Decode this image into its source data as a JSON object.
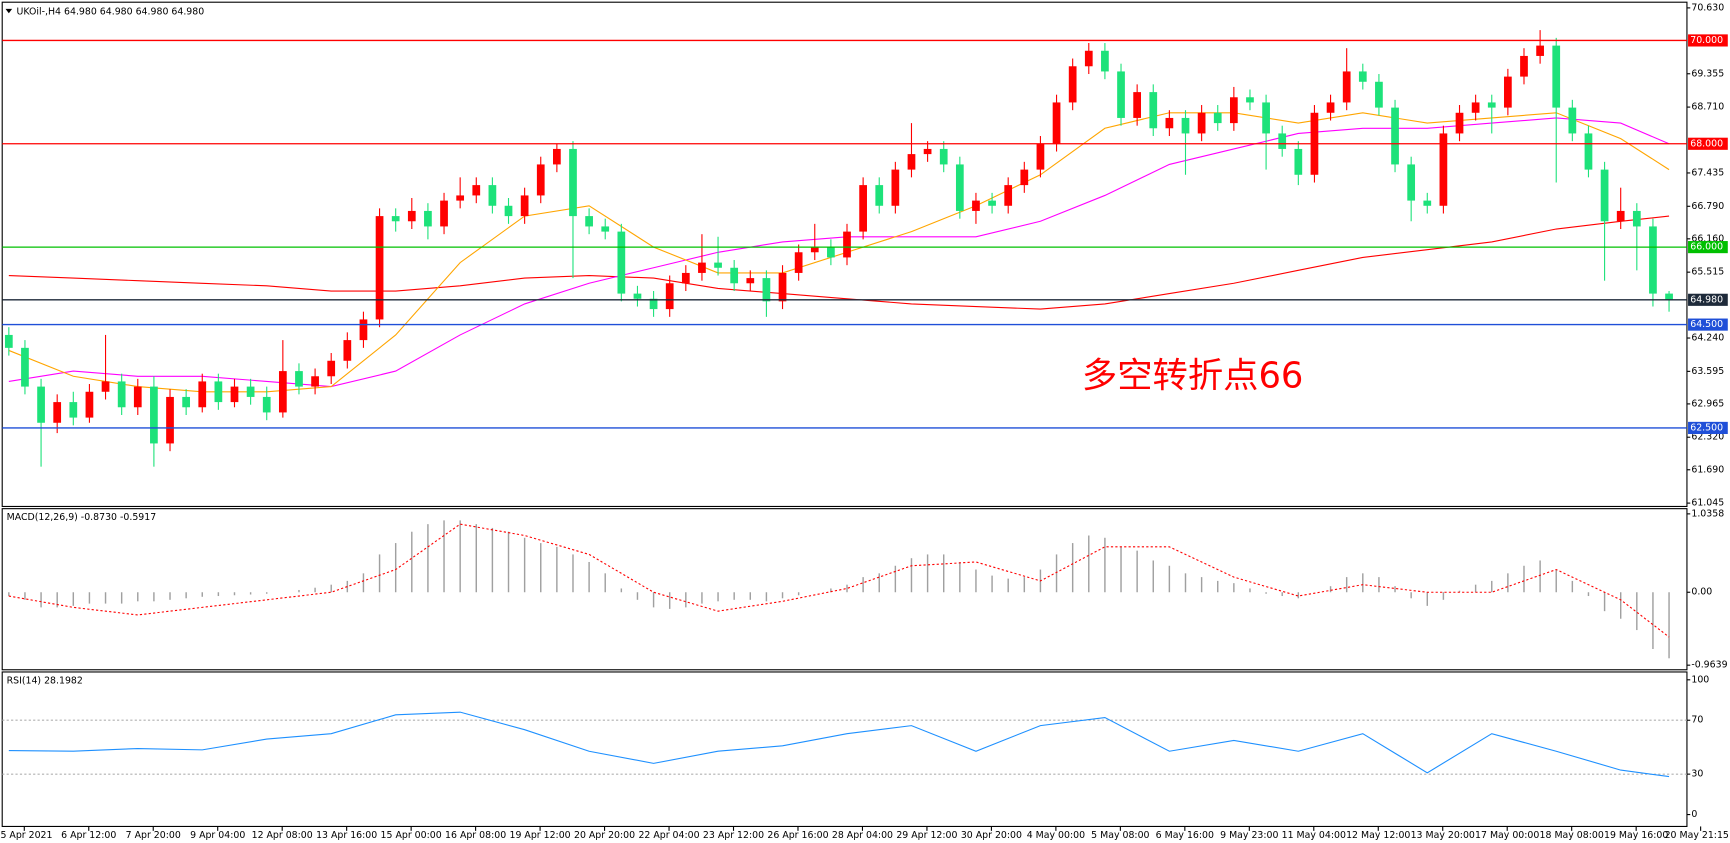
{
  "chart_data": {
    "type": "candlestick",
    "header": "UKOil-,H4  64.980 64.980 64.980 64.980",
    "up_color": "#ff0000",
    "down_color": "#1de27a",
    "candles": [
      [
        64.3,
        64.45,
        63.9,
        64.05
      ],
      [
        64.05,
        64.2,
        63.15,
        63.3
      ],
      [
        63.3,
        63.45,
        61.75,
        62.6
      ],
      [
        62.6,
        63.15,
        62.4,
        63.0
      ],
      [
        63.0,
        63.2,
        62.55,
        62.7
      ],
      [
        62.7,
        63.35,
        62.6,
        63.2
      ],
      [
        63.2,
        64.3,
        63.05,
        63.4
      ],
      [
        63.4,
        63.55,
        62.75,
        62.9
      ],
      [
        62.9,
        63.45,
        62.75,
        63.3
      ],
      [
        63.3,
        63.5,
        61.75,
        62.2
      ],
      [
        62.2,
        63.25,
        62.05,
        63.1
      ],
      [
        63.1,
        63.25,
        62.75,
        62.9
      ],
      [
        62.9,
        63.55,
        62.8,
        63.4
      ],
      [
        63.4,
        63.55,
        62.85,
        63.0
      ],
      [
        63.0,
        63.45,
        62.9,
        63.3
      ],
      [
        63.3,
        63.45,
        62.95,
        63.1
      ],
      [
        63.1,
        63.3,
        62.65,
        62.8
      ],
      [
        62.8,
        64.2,
        62.7,
        63.6
      ],
      [
        63.6,
        63.75,
        63.15,
        63.3
      ],
      [
        63.3,
        63.65,
        63.15,
        63.5
      ],
      [
        63.5,
        63.95,
        63.35,
        63.8
      ],
      [
        63.8,
        64.35,
        63.65,
        64.2
      ],
      [
        64.2,
        64.75,
        64.05,
        64.6
      ],
      [
        64.6,
        66.75,
        64.45,
        66.6
      ],
      [
        66.6,
        66.75,
        66.3,
        66.5
      ],
      [
        66.5,
        66.95,
        66.35,
        66.7
      ],
      [
        66.7,
        66.85,
        66.15,
        66.4
      ],
      [
        66.4,
        67.05,
        66.25,
        66.9
      ],
      [
        66.9,
        67.35,
        66.75,
        67.0
      ],
      [
        67.0,
        67.35,
        66.85,
        67.2
      ],
      [
        67.2,
        67.35,
        66.65,
        66.8
      ],
      [
        66.8,
        66.95,
        66.45,
        66.6
      ],
      [
        66.6,
        67.15,
        66.45,
        67.0
      ],
      [
        67.0,
        67.75,
        66.85,
        67.6
      ],
      [
        67.6,
        68.0,
        67.45,
        67.9
      ],
      [
        67.9,
        68.05,
        65.4,
        66.6
      ],
      [
        66.6,
        66.75,
        66.25,
        66.4
      ],
      [
        66.4,
        66.55,
        66.15,
        66.3
      ],
      [
        66.3,
        66.45,
        64.95,
        65.1
      ],
      [
        65.1,
        65.25,
        64.85,
        65.0
      ],
      [
        65.0,
        65.15,
        64.65,
        64.8
      ],
      [
        64.8,
        65.45,
        64.65,
        65.3
      ],
      [
        65.3,
        65.65,
        65.15,
        65.5
      ],
      [
        65.5,
        66.25,
        65.35,
        65.7
      ],
      [
        65.7,
        66.2,
        65.45,
        65.6
      ],
      [
        65.6,
        65.75,
        65.15,
        65.3
      ],
      [
        65.3,
        65.55,
        65.15,
        65.4
      ],
      [
        65.4,
        65.55,
        64.65,
        64.95
      ],
      [
        64.95,
        65.65,
        64.8,
        65.5
      ],
      [
        65.5,
        66.05,
        65.35,
        65.9
      ],
      [
        65.9,
        66.45,
        65.75,
        66.0
      ],
      [
        66.0,
        66.15,
        65.65,
        65.8
      ],
      [
        65.8,
        66.45,
        65.65,
        66.3
      ],
      [
        66.3,
        67.35,
        66.15,
        67.2
      ],
      [
        67.2,
        67.35,
        66.65,
        66.8
      ],
      [
        66.8,
        67.65,
        66.65,
        67.5
      ],
      [
        67.5,
        68.4,
        67.35,
        67.8
      ],
      [
        67.8,
        68.05,
        67.65,
        67.9
      ],
      [
        67.9,
        68.05,
        67.45,
        67.6
      ],
      [
        67.6,
        67.75,
        66.55,
        66.7
      ],
      [
        66.7,
        67.05,
        66.45,
        66.9
      ],
      [
        66.9,
        67.05,
        66.65,
        66.8
      ],
      [
        66.8,
        67.35,
        66.65,
        67.2
      ],
      [
        67.2,
        67.65,
        67.05,
        67.5
      ],
      [
        67.5,
        68.15,
        67.35,
        68.0
      ],
      [
        68.0,
        68.95,
        67.85,
        68.8
      ],
      [
        68.8,
        69.65,
        68.65,
        69.5
      ],
      [
        69.5,
        69.95,
        69.35,
        69.8
      ],
      [
        69.8,
        69.95,
        69.25,
        69.4
      ],
      [
        69.4,
        69.55,
        68.35,
        68.5
      ],
      [
        68.5,
        69.15,
        68.35,
        69.0
      ],
      [
        69.0,
        69.15,
        68.15,
        68.3
      ],
      [
        68.3,
        68.65,
        68.15,
        68.5
      ],
      [
        68.5,
        68.65,
        67.4,
        68.2
      ],
      [
        68.2,
        68.75,
        68.05,
        68.6
      ],
      [
        68.6,
        68.75,
        68.25,
        68.4
      ],
      [
        68.4,
        69.1,
        68.25,
        68.9
      ],
      [
        68.9,
        69.05,
        68.65,
        68.8
      ],
      [
        68.8,
        68.95,
        67.5,
        68.2
      ],
      [
        68.2,
        68.35,
        67.75,
        67.9
      ],
      [
        67.9,
        68.05,
        67.2,
        67.4
      ],
      [
        67.4,
        68.75,
        67.25,
        68.6
      ],
      [
        68.6,
        68.95,
        68.45,
        68.8
      ],
      [
        68.8,
        69.85,
        68.65,
        69.4
      ],
      [
        69.4,
        69.55,
        69.05,
        69.2
      ],
      [
        69.2,
        69.35,
        68.55,
        68.7
      ],
      [
        68.7,
        68.85,
        67.45,
        67.6
      ],
      [
        67.6,
        67.75,
        66.5,
        66.9
      ],
      [
        66.9,
        67.05,
        66.65,
        66.8
      ],
      [
        66.8,
        68.35,
        66.65,
        68.2
      ],
      [
        68.2,
        68.75,
        68.05,
        68.6
      ],
      [
        68.6,
        68.95,
        68.45,
        68.8
      ],
      [
        68.8,
        68.95,
        68.2,
        68.7
      ],
      [
        68.7,
        69.45,
        68.55,
        69.3
      ],
      [
        69.3,
        69.85,
        69.15,
        69.7
      ],
      [
        69.7,
        70.2,
        69.55,
        69.9
      ],
      [
        69.9,
        70.05,
        67.25,
        68.7
      ],
      [
        68.7,
        68.85,
        68.05,
        68.2
      ],
      [
        68.2,
        68.35,
        67.35,
        67.5
      ],
      [
        67.5,
        67.65,
        65.35,
        66.5
      ],
      [
        66.5,
        67.15,
        66.35,
        66.7
      ],
      [
        66.7,
        66.85,
        65.55,
        66.4
      ],
      [
        66.4,
        66.55,
        64.85,
        65.1
      ],
      [
        65.1,
        65.15,
        64.75,
        64.98
      ]
    ],
    "time_labels": [
      "5 Apr 2021",
      "6 Apr 12:00",
      "7 Apr 20:00",
      "9 Apr 04:00",
      "12 Apr 08:00",
      "13 Apr 16:00",
      "15 Apr 00:00",
      "16 Apr 08:00",
      "19 Apr 12:00",
      "20 Apr 20:00",
      "22 Apr 04:00",
      "23 Apr 12:00",
      "26 Apr 16:00",
      "28 Apr 04:00",
      "29 Apr 12:00",
      "30 Apr 20:00",
      "4 May 00:00",
      "5 May 08:00",
      "6 May 16:00",
      "9 May 23:00",
      "11 May 04:00",
      "12 May 12:00",
      "13 May 20:00",
      "17 May 00:00",
      "18 May 08:00",
      "19 May 16:00",
      "20 May 21:15"
    ],
    "ylim": [
      60.98,
      70.74
    ],
    "yticks": [
      {
        "value": 70.63,
        "label": "70.630"
      },
      {
        "value": 69.355,
        "label": "69.355"
      },
      {
        "value": 68.71,
        "label": "68.710"
      },
      {
        "value": 67.435,
        "label": "67.435"
      },
      {
        "value": 66.79,
        "label": "66.790"
      },
      {
        "value": 66.16,
        "label": "66.160"
      },
      {
        "value": 65.515,
        "label": "65.515"
      },
      {
        "value": 64.24,
        "label": "64.240"
      },
      {
        "value": 63.595,
        "label": "63.595"
      },
      {
        "value": 62.965,
        "label": "62.965"
      },
      {
        "value": 62.32,
        "label": "62.320"
      },
      {
        "value": 61.69,
        "label": "61.690"
      },
      {
        "value": 61.045,
        "label": "61.045"
      }
    ],
    "levels": [
      {
        "value": 70,
        "label": "70.000",
        "color": "#ff0000"
      },
      {
        "value": 68,
        "label": "68.000",
        "color": "#ff0000"
      },
      {
        "value": 66,
        "label": "66.000",
        "color": "#00c000"
      },
      {
        "value": 64.98,
        "label": "64.980",
        "color": "#1e2a3a"
      },
      {
        "value": 64.5,
        "label": "64.500",
        "color": "#1f4fd8"
      },
      {
        "value": 62.5,
        "label": "62.500",
        "color": "#1f4fd8"
      }
    ],
    "moving_averages": [
      {
        "color": "#ff0000",
        "values": [
          65.45,
          65.4,
          65.35,
          65.3,
          65.25,
          65.15,
          65.15,
          65.25,
          65.4,
          65.45,
          65.4,
          65.2,
          65.1,
          65.0,
          64.9,
          64.85,
          64.8,
          64.9,
          65.1,
          65.3,
          65.55,
          65.8,
          65.95,
          66.1,
          66.35,
          66.5,
          66.6
        ]
      },
      {
        "color": "#ff00ff",
        "values": [
          63.4,
          63.6,
          63.5,
          63.5,
          63.4,
          63.3,
          63.6,
          64.3,
          64.9,
          65.3,
          65.6,
          65.9,
          66.1,
          66.2,
          66.2,
          66.2,
          66.5,
          67.0,
          67.6,
          67.9,
          68.2,
          68.3,
          68.3,
          68.4,
          68.5,
          68.4,
          68.0
        ]
      },
      {
        "color": "#ffa500",
        "values": [
          64.0,
          63.5,
          63.3,
          63.2,
          63.2,
          63.3,
          64.3,
          65.7,
          66.6,
          66.8,
          66.0,
          65.5,
          65.5,
          65.9,
          66.3,
          66.8,
          67.4,
          68.3,
          68.6,
          68.6,
          68.4,
          68.6,
          68.4,
          68.5,
          68.6,
          68.1,
          67.5
        ]
      }
    ],
    "annotation": {
      "text": "多空转折点66",
      "color": "#ff0000"
    },
    "macd": {
      "label": "MACD(12,26,9) -0.8730 -0.5917",
      "histogram_color": "#a0a0a0",
      "signal_color": "#ff0000",
      "ylim": [
        -1.01,
        1.09
      ],
      "yticks": [
        1.0358,
        {
          "value": 0,
          "label": "0.00"
        },
        -0.9639
      ],
      "histogram": [
        -0.05,
        -0.1,
        -0.2,
        -0.2,
        -0.18,
        -0.15,
        -0.15,
        -0.15,
        -0.12,
        -0.12,
        -0.1,
        -0.08,
        -0.06,
        -0.05,
        -0.04,
        -0.03,
        -0.02,
        0.0,
        0.03,
        0.06,
        0.1,
        0.15,
        0.25,
        0.5,
        0.65,
        0.8,
        0.9,
        0.95,
        0.95,
        0.9,
        0.85,
        0.8,
        0.72,
        0.65,
        0.6,
        0.5,
        0.4,
        0.25,
        0.05,
        -0.1,
        -0.2,
        -0.22,
        -0.2,
        -0.15,
        -0.12,
        -0.1,
        -0.1,
        -0.12,
        -0.08,
        -0.04,
        0.0,
        0.05,
        0.1,
        0.2,
        0.25,
        0.35,
        0.45,
        0.5,
        0.5,
        0.4,
        0.3,
        0.22,
        0.18,
        0.2,
        0.3,
        0.5,
        0.65,
        0.75,
        0.72,
        0.6,
        0.55,
        0.42,
        0.35,
        0.25,
        0.2,
        0.15,
        0.12,
        0.05,
        -0.02,
        -0.05,
        -0.08,
        0.0,
        0.08,
        0.2,
        0.25,
        0.2,
        0.08,
        -0.08,
        -0.18,
        -0.1,
        0.02,
        0.1,
        0.15,
        0.25,
        0.35,
        0.42,
        0.3,
        0.15,
        -0.05,
        -0.25,
        -0.35,
        -0.5,
        -0.75,
        -0.873
      ],
      "signal": [
        -0.05,
        -0.2,
        -0.3,
        -0.2,
        -0.1,
        0.0,
        0.3,
        0.9,
        0.75,
        0.5,
        0.0,
        -0.25,
        -0.12,
        0.05,
        0.35,
        0.4,
        0.15,
        0.6,
        0.6,
        0.2,
        -0.05,
        0.1,
        0.0,
        0.0,
        0.3,
        -0.1,
        -0.5917
      ]
    },
    "rsi": {
      "label": "RSI(14) 28.1982",
      "color": "#1e90ff",
      "ylim": [
        -8,
        105
      ],
      "yticks": [
        100,
        70,
        30,
        0
      ],
      "grid_levels": [
        70,
        30
      ],
      "values": [
        47.5,
        47,
        49,
        48,
        56,
        60,
        74,
        76,
        63,
        47,
        38,
        47,
        51,
        60,
        66,
        47,
        66,
        72,
        47,
        55,
        47,
        60,
        31,
        60,
        47,
        33,
        28.1982
      ]
    }
  }
}
